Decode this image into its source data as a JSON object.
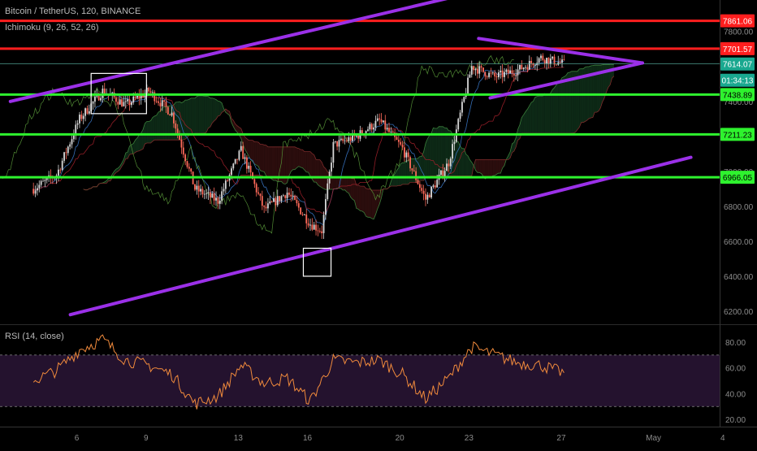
{
  "header": {
    "symbol": "Bitcoin / TetherUS, 120, BINANCE",
    "indicator": "Ichimoku (9, 26, 52, 26)"
  },
  "rsi_panel": {
    "label": "RSI (14, close)"
  },
  "colors": {
    "background": "#000000",
    "resistance_red": "#ff1e1e",
    "support_green": "#2ef22e",
    "trendline_purple": "#9b30e8",
    "candle_up": "#d8d8d8",
    "candle_down": "#ff6a5a",
    "rsi_line": "#f08a3c",
    "rsi_band_fill": "#24122e",
    "cloud_bull": "#12371e",
    "cloud_bear": "#3a1212",
    "price_tag": "#19a88f"
  },
  "chart_data": [
    {
      "type": "candlestick",
      "y_axis": {
        "range": [
          6130,
          7980
        ],
        "ticks": [
          6200,
          6400,
          6600,
          6800,
          7000,
          7200,
          7400,
          7600,
          7800
        ],
        "tick_labels": [
          "6200.00",
          "6400.00",
          "6600.00",
          "6800.00",
          "7000.00",
          "7200.00",
          "7400.00",
          "7600.00",
          "7800.00"
        ]
      },
      "x_axis": {
        "tick_labels": [
          "6",
          "9",
          "13",
          "16",
          "20",
          "23",
          "27",
          "May",
          "4"
        ]
      },
      "price_labels": [
        {
          "value": 7861.06,
          "text": "7861.06",
          "kind": "resistance"
        },
        {
          "value": 7701.57,
          "text": "7701.57",
          "kind": "resistance"
        },
        {
          "value": 7614.07,
          "text": "7614.07",
          "kind": "last"
        },
        {
          "text": "01:34:13",
          "kind": "countdown"
        },
        {
          "value": 7438.89,
          "text": "7438.89",
          "kind": "support"
        },
        {
          "value": 7211.23,
          "text": "7211.23",
          "kind": "support"
        },
        {
          "value": 6966.05,
          "text": "6966.05",
          "kind": "support"
        }
      ],
      "horizontal_levels": [
        {
          "value": 7861.06,
          "color": "resistance_red"
        },
        {
          "value": 7701.57,
          "color": "resistance_red"
        },
        {
          "value": 7438.89,
          "color": "support_green"
        },
        {
          "value": 7211.23,
          "color": "support_green"
        },
        {
          "value": 6966.05,
          "color": "support_green"
        }
      ],
      "price_path": [
        {
          "date": "Apr 4",
          "close": 6900
        },
        {
          "date": "Apr 5",
          "close": 6980
        },
        {
          "date": "Apr 6",
          "close": 7300
        },
        {
          "date": "Apr 7",
          "close": 7460
        },
        {
          "date": "Apr 8",
          "close": 7380
        },
        {
          "date": "Apr 9",
          "close": 7460
        },
        {
          "date": "Apr 10",
          "close": 7330
        },
        {
          "date": "Apr 11",
          "close": 6900
        },
        {
          "date": "Apr 12",
          "close": 6830
        },
        {
          "date": "Apr 13",
          "close": 7120
        },
        {
          "date": "Apr 14",
          "close": 6780
        },
        {
          "date": "Apr 15",
          "close": 6880
        },
        {
          "date": "Apr 16",
          "close": 6700
        },
        {
          "date": "Apr 16.5",
          "close": 6660
        },
        {
          "date": "Apr 17",
          "close": 7150
        },
        {
          "date": "Apr 18",
          "close": 7200
        },
        {
          "date": "Apr 19",
          "close": 7290
        },
        {
          "date": "Apr 20",
          "close": 7130
        },
        {
          "date": "Apr 21",
          "close": 6840
        },
        {
          "date": "Apr 22",
          "close": 7050
        },
        {
          "date": "Apr 23",
          "close": 7600
        },
        {
          "date": "Apr 24",
          "close": 7540
        },
        {
          "date": "Apr 25",
          "close": 7580
        },
        {
          "date": "Apr 26",
          "close": 7650
        },
        {
          "date": "Apr 27",
          "close": 7614
        }
      ]
    },
    {
      "type": "line",
      "name": "RSI (14, close)",
      "y_axis": {
        "range": [
          15,
          92
        ],
        "ticks": [
          20,
          40,
          60,
          80
        ],
        "tick_labels": [
          "20.00",
          "40.00",
          "60.00",
          "80.00"
        ]
      },
      "bands": {
        "upper": 70,
        "lower": 30
      },
      "values": [
        {
          "date": "Apr 4",
          "rsi": 50
        },
        {
          "date": "Apr 5",
          "rsi": 58
        },
        {
          "date": "Apr 6",
          "rsi": 74
        },
        {
          "date": "Apr 7",
          "rsi": 82
        },
        {
          "date": "Apr 8",
          "rsi": 66
        },
        {
          "date": "Apr 9",
          "rsi": 62
        },
        {
          "date": "Apr 10",
          "rsi": 55
        },
        {
          "date": "Apr 11",
          "rsi": 32
        },
        {
          "date": "Apr 12",
          "rsi": 38
        },
        {
          "date": "Apr 13",
          "rsi": 62
        },
        {
          "date": "Apr 14",
          "rsi": 48
        },
        {
          "date": "Apr 15",
          "rsi": 52
        },
        {
          "date": "Apr 16",
          "rsi": 34
        },
        {
          "date": "Apr 17",
          "rsi": 66
        },
        {
          "date": "Apr 18",
          "rsi": 64
        },
        {
          "date": "Apr 19",
          "rsi": 66
        },
        {
          "date": "Apr 20",
          "rsi": 55
        },
        {
          "date": "Apr 21",
          "rsi": 36
        },
        {
          "date": "Apr 22",
          "rsi": 52
        },
        {
          "date": "Apr 23",
          "rsi": 76
        },
        {
          "date": "Apr 24",
          "rsi": 70
        },
        {
          "date": "Apr 25",
          "rsi": 64
        },
        {
          "date": "Apr 26",
          "rsi": 62
        },
        {
          "date": "Apr 27",
          "rsi": 56
        }
      ]
    }
  ]
}
